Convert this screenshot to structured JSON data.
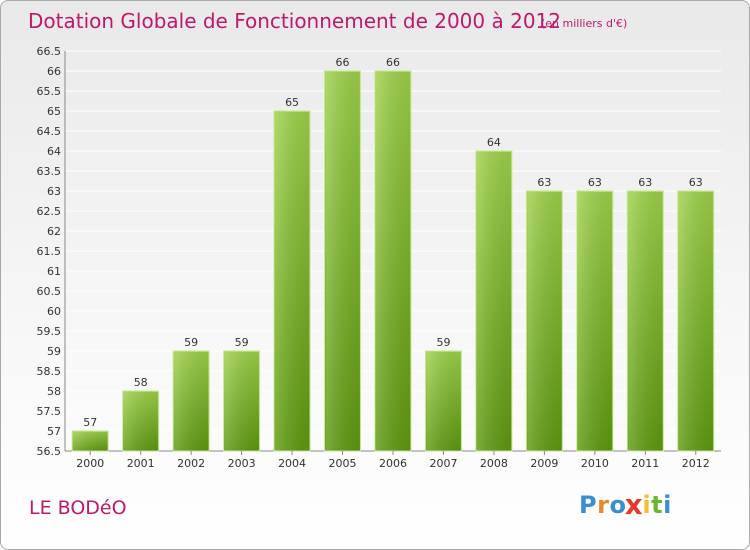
{
  "chart_data": {
    "type": "bar",
    "title": "Dotation Globale de Fonctionnement de 2000 à 2012",
    "unit": "(en milliers d'€)",
    "categories": [
      "2000",
      "2001",
      "2002",
      "2003",
      "2004",
      "2005",
      "2006",
      "2007",
      "2008",
      "2009",
      "2010",
      "2011",
      "2012"
    ],
    "values": [
      57,
      58,
      59,
      59,
      65,
      66,
      66,
      59,
      64,
      63,
      63,
      63,
      63
    ],
    "ylim": [
      56.5,
      66.5
    ],
    "yticks": [
      "56.5",
      "57",
      "57.5",
      "58",
      "58.5",
      "59",
      "59.5",
      "60",
      "60.5",
      "61",
      "61.5",
      "62",
      "62.5",
      "63",
      "63.5",
      "64",
      "64.5",
      "65",
      "65.5",
      "66",
      "66.5"
    ],
    "grid": true,
    "colors": {
      "bar_light": "#9ed24a",
      "bar_dark": "#5e9a10",
      "title": "#c0186c",
      "grid": "#ffffff"
    }
  },
  "commune": "LE BODéO",
  "logo": {
    "letters": [
      "P",
      "r",
      "o",
      "x",
      "i",
      "t",
      "i"
    ],
    "colors": [
      "#3a8fd0",
      "#e8892a",
      "#3a8fd0",
      "#e8392a",
      "#f2c02c",
      "#6bb82e",
      "#3a8fd0"
    ]
  }
}
